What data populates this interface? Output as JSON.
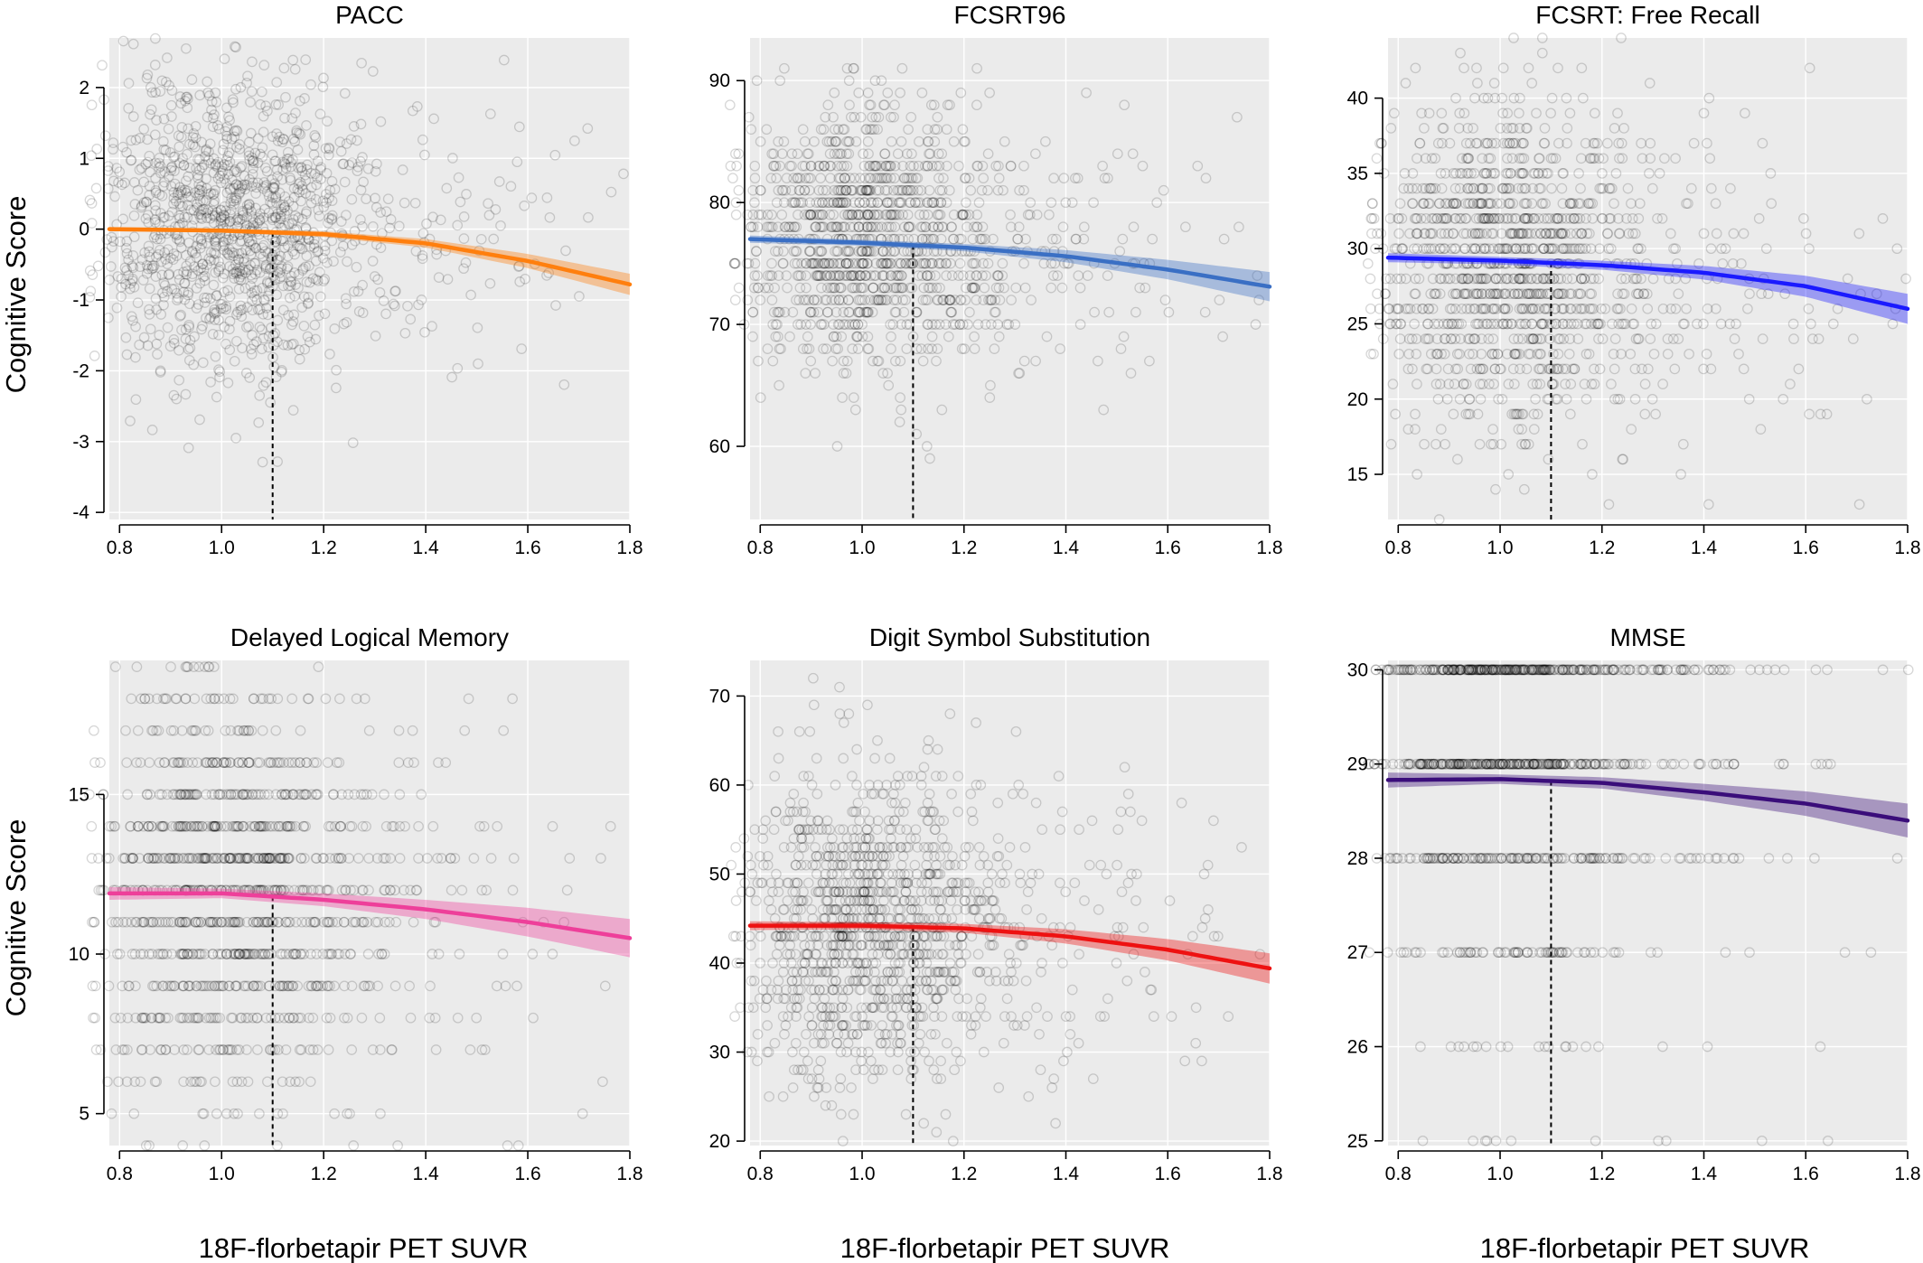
{
  "figure": {
    "ylabel": "Cognitive Score",
    "xlabel": "18F-florbetapir PET SUVR"
  },
  "chart_data": [
    {
      "type": "scatter",
      "title": "PACC",
      "xlim": [
        0.78,
        1.8
      ],
      "ylim": [
        -4.1,
        2.7
      ],
      "xticks": [
        0.8,
        1.0,
        1.2,
        1.4,
        1.6,
        1.8
      ],
      "xtick_labels": [
        "0.8",
        "1.0",
        "1.2",
        "1.4",
        "1.6",
        "1.8"
      ],
      "yticks": [
        -4,
        -3,
        -2,
        -1,
        0,
        1,
        2
      ],
      "ytick_labels": [
        "-4",
        "-3",
        "-2",
        "-1",
        "0",
        "1",
        "2"
      ],
      "threshold_x": 1.1,
      "scatter": {
        "center": 0.1,
        "spread": 1.1,
        "n": 1300,
        "slope": -0.4,
        "discrete": false
      },
      "fit": {
        "x": [
          0.78,
          1.0,
          1.2,
          1.4,
          1.6,
          1.8
        ],
        "y": [
          0.0,
          -0.02,
          -0.07,
          -0.2,
          -0.45,
          -0.78
        ]
      },
      "band_halfwidth": [
        0.03,
        0.03,
        0.04,
        0.06,
        0.1,
        0.15
      ],
      "color": "#ff7f0e"
    },
    {
      "type": "scatter",
      "title": "FCSRT96",
      "xlim": [
        0.78,
        1.8
      ],
      "ylim": [
        54,
        93.5
      ],
      "xticks": [
        0.8,
        1.0,
        1.2,
        1.4,
        1.6,
        1.8
      ],
      "xtick_labels": [
        "0.8",
        "1.0",
        "1.2",
        "1.4",
        "1.6",
        "1.8"
      ],
      "yticks": [
        60,
        70,
        80,
        90
      ],
      "ytick_labels": [
        "60",
        "70",
        "80",
        "90"
      ],
      "threshold_x": 1.1,
      "scatter": {
        "center": 77,
        "spread": 5.5,
        "n": 1250,
        "slope": -3,
        "discrete": true,
        "step": 1
      },
      "fit": {
        "x": [
          0.78,
          1.0,
          1.2,
          1.4,
          1.6,
          1.8
        ],
        "y": [
          77.0,
          76.7,
          76.3,
          75.6,
          74.5,
          73.1
        ]
      },
      "band_halfwidth": [
        0.3,
        0.25,
        0.3,
        0.5,
        0.8,
        1.2
      ],
      "color": "#3a6fc4"
    },
    {
      "type": "scatter",
      "title": "FCSRT: Free Recall",
      "xlim": [
        0.78,
        1.8
      ],
      "ylim": [
        12,
        44
      ],
      "xticks": [
        0.8,
        1.0,
        1.2,
        1.4,
        1.6,
        1.8
      ],
      "xtick_labels": [
        "0.8",
        "1.0",
        "1.2",
        "1.4",
        "1.6",
        "1.8"
      ],
      "yticks": [
        15,
        20,
        25,
        30,
        35,
        40
      ],
      "ytick_labels": [
        "15",
        "20",
        "25",
        "30",
        "35",
        "40"
      ],
      "threshold_x": 1.1,
      "scatter": {
        "center": 29,
        "spread": 5.5,
        "n": 1300,
        "slope": -3,
        "discrete": true,
        "step": 1
      },
      "fit": {
        "x": [
          0.78,
          1.0,
          1.2,
          1.4,
          1.6,
          1.8
        ],
        "y": [
          29.4,
          29.2,
          28.9,
          28.4,
          27.5,
          26.0
        ]
      },
      "band_halfwidth": [
        0.3,
        0.25,
        0.3,
        0.45,
        0.7,
        1.0
      ],
      "color": "#1a1aff"
    },
    {
      "type": "scatter",
      "title": "Delayed Logical Memory",
      "xlim": [
        0.78,
        1.8
      ],
      "ylim": [
        4,
        19.2
      ],
      "xticks": [
        0.8,
        1.0,
        1.2,
        1.4,
        1.6,
        1.8
      ],
      "xtick_labels": [
        "0.8",
        "1.0",
        "1.2",
        "1.4",
        "1.6",
        "1.8"
      ],
      "yticks": [
        5,
        10,
        15
      ],
      "ytick_labels": [
        "5",
        "10",
        "15"
      ],
      "threshold_x": 1.1,
      "scatter": {
        "center": 12,
        "spread": 3.3,
        "n": 1200,
        "slope": -2,
        "discrete": true,
        "step": 1
      },
      "fit": {
        "x": [
          0.78,
          1.0,
          1.2,
          1.4,
          1.6,
          1.8
        ],
        "y": [
          11.9,
          11.9,
          11.7,
          11.4,
          11.0,
          10.5
        ]
      },
      "band_halfwidth": [
        0.2,
        0.15,
        0.2,
        0.3,
        0.45,
        0.6
      ],
      "color": "#ee3f9a"
    },
    {
      "type": "scatter",
      "title": "Digit Symbol Substitution",
      "xlim": [
        0.78,
        1.8
      ],
      "ylim": [
        19.5,
        74
      ],
      "xticks": [
        0.8,
        1.0,
        1.2,
        1.4,
        1.6,
        1.8
      ],
      "xtick_labels": [
        "0.8",
        "1.0",
        "1.2",
        "1.4",
        "1.6",
        "1.8"
      ],
      "yticks": [
        20,
        30,
        40,
        50,
        60,
        70
      ],
      "ytick_labels": [
        "20",
        "30",
        "40",
        "50",
        "60",
        "70"
      ],
      "threshold_x": 1.1,
      "scatter": {
        "center": 44,
        "spread": 9,
        "n": 1300,
        "slope": -5,
        "discrete": true,
        "step": 1
      },
      "fit": {
        "x": [
          0.78,
          1.0,
          1.2,
          1.4,
          1.6,
          1.8
        ],
        "y": [
          44.2,
          44.2,
          43.9,
          43.0,
          41.5,
          39.4
        ]
      },
      "band_halfwidth": [
        0.5,
        0.4,
        0.5,
        0.8,
        1.2,
        1.7
      ],
      "color": "#ee1111"
    },
    {
      "type": "scatter",
      "title": "MMSE",
      "xlim": [
        0.78,
        1.8
      ],
      "ylim": [
        24.95,
        30.1
      ],
      "xticks": [
        0.8,
        1.0,
        1.2,
        1.4,
        1.6,
        1.8
      ],
      "xtick_labels": [
        "0.8",
        "1.0",
        "1.2",
        "1.4",
        "1.6",
        "1.8"
      ],
      "yticks": [
        25,
        26,
        27,
        28,
        29,
        30
      ],
      "ytick_labels": [
        "25",
        "26",
        "27",
        "28",
        "29",
        "30"
      ],
      "threshold_x": 1.1,
      "scatter": {
        "levels": [
          30,
          29,
          28,
          27,
          26,
          25
        ],
        "weights": [
          0.4,
          0.3,
          0.17,
          0.08,
          0.03,
          0.02
        ],
        "n": 900,
        "discrete": true
      },
      "fit": {
        "x": [
          0.78,
          1.0,
          1.2,
          1.4,
          1.6,
          1.8
        ],
        "y": [
          28.83,
          28.84,
          28.8,
          28.7,
          28.58,
          28.4
        ]
      },
      "band_halfwidth": [
        0.08,
        0.05,
        0.06,
        0.09,
        0.13,
        0.18
      ],
      "color": "#3a0d7a"
    }
  ]
}
